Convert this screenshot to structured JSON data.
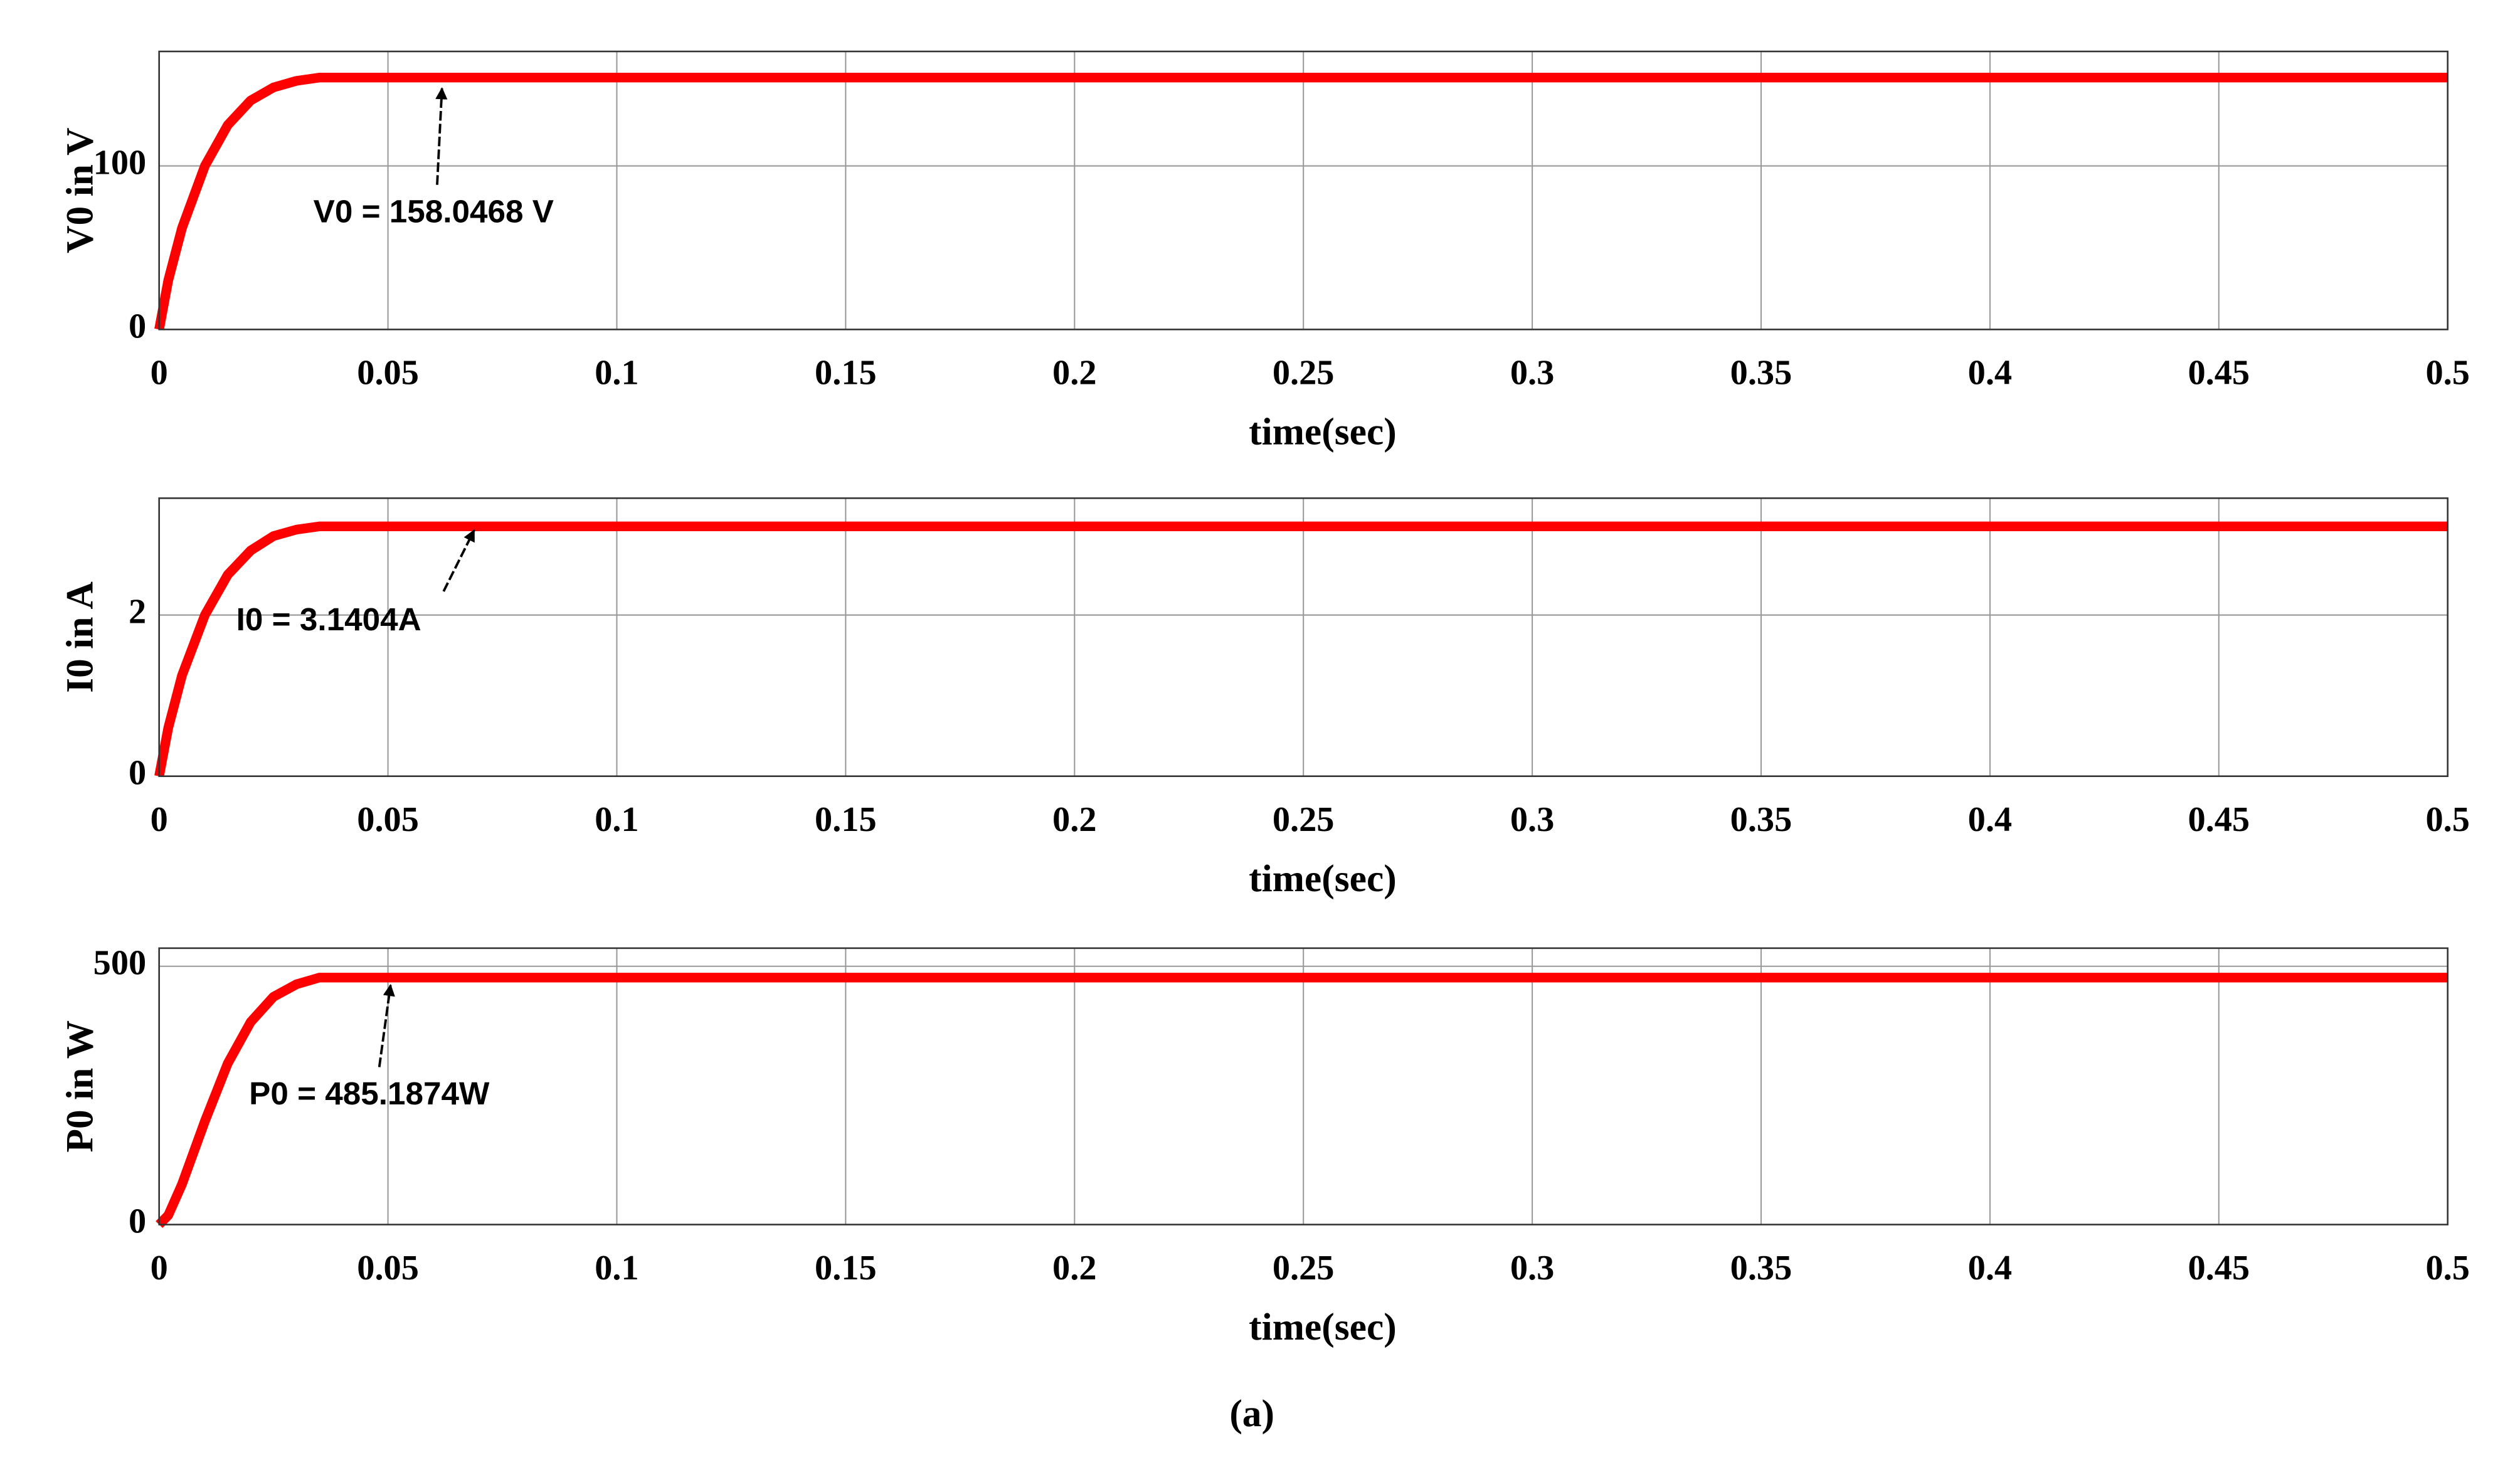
{
  "chart_data": [
    {
      "type": "line",
      "ylabel": "V0 in V",
      "xlabel": "time(sec)",
      "x": [
        0,
        0.002,
        0.005,
        0.01,
        0.015,
        0.02,
        0.025,
        0.03,
        0.035,
        0.04,
        0.5
      ],
      "series": [
        {
          "name": "V0",
          "color": "#ff0000",
          "values": [
            0,
            30,
            62,
            100,
            125,
            140,
            148,
            152,
            154,
            154,
            154
          ]
        }
      ],
      "xlim": [
        0,
        0.5
      ],
      "xticks": [
        0,
        0.05,
        0.1,
        0.15,
        0.2,
        0.25,
        0.3,
        0.35,
        0.4,
        0.45,
        0.5
      ],
      "ylim": [
        0,
        170
      ],
      "yticks": [
        0,
        100
      ],
      "grid": true,
      "annotations": [
        {
          "text": "V0 = 158.0468 V"
        }
      ]
    },
    {
      "type": "line",
      "ylabel": "I0 in A",
      "xlabel": "time(sec)",
      "x": [
        0,
        0.002,
        0.005,
        0.01,
        0.015,
        0.02,
        0.025,
        0.03,
        0.035,
        0.04,
        0.5
      ],
      "series": [
        {
          "name": "I0",
          "color": "#ff0000",
          "values": [
            0,
            0.6,
            1.25,
            2.0,
            2.5,
            2.8,
            2.98,
            3.06,
            3.1,
            3.1,
            3.1
          ]
        }
      ],
      "xlim": [
        0,
        0.5
      ],
      "xticks": [
        0,
        0.05,
        0.1,
        0.15,
        0.2,
        0.25,
        0.3,
        0.35,
        0.4,
        0.45,
        0.5
      ],
      "ylim": [
        0,
        3.45
      ],
      "yticks": [
        0,
        2
      ],
      "grid": true,
      "annotations": [
        {
          "text": "I0 = 3.1404A"
        }
      ]
    },
    {
      "type": "line",
      "ylabel": "P0 in W",
      "xlabel": "time(sec)",
      "x": [
        0,
        0.002,
        0.005,
        0.01,
        0.015,
        0.02,
        0.025,
        0.03,
        0.035,
        0.04,
        0.5
      ],
      "series": [
        {
          "name": "P0",
          "color": "#ff0000",
          "values": [
            0,
            18,
            78,
            200,
            312,
            392,
            441,
            465,
            478,
            478,
            478
          ]
        }
      ],
      "xlim": [
        0,
        0.5
      ],
      "xticks": [
        0,
        0.05,
        0.1,
        0.15,
        0.2,
        0.25,
        0.3,
        0.35,
        0.4,
        0.45,
        0.5
      ],
      "ylim": [
        0,
        535
      ],
      "yticks": [
        0,
        500
      ],
      "grid": true,
      "annotations": [
        {
          "text": "P0 = 485.1874W"
        }
      ]
    }
  ],
  "caption": "(a)"
}
